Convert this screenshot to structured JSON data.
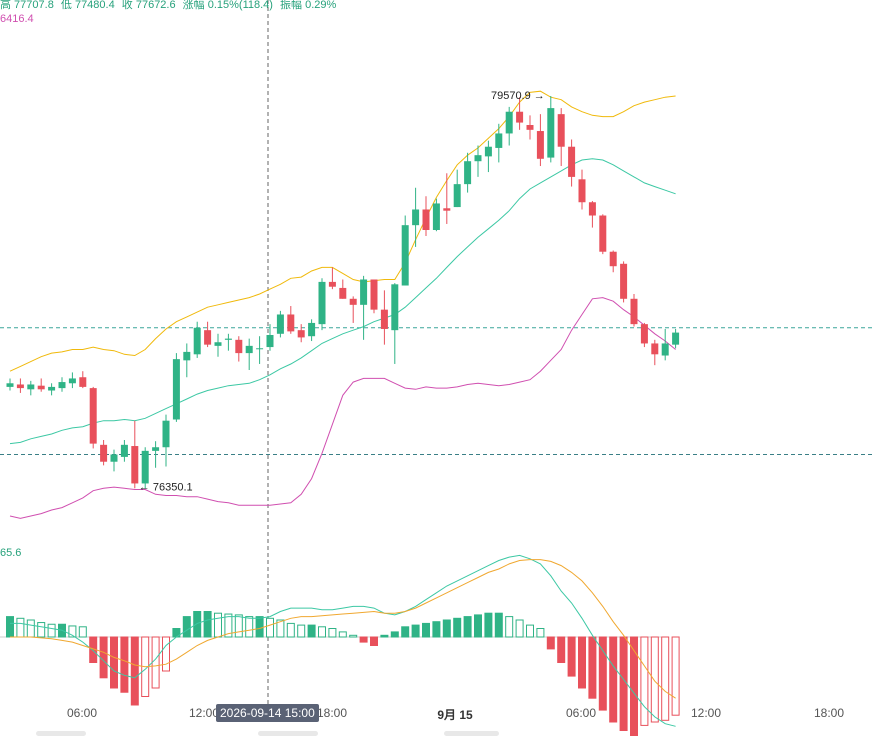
{
  "header": {
    "high": "高 77707.8",
    "low": "低 77480.4",
    "close": "收 77672.6",
    "change": "涨幅 0.15%(118.4)",
    "amplitude": "振幅 0.29%",
    "bb_top": "6416.4",
    "macd_value": "65.6"
  },
  "colors": {
    "up": "#2fb386",
    "down": "#e8505b",
    "ma": "#3cc8a4",
    "upper": "#f0b90b",
    "lower": "#d04fb0",
    "dif": "#3cc8a4",
    "dea": "#f0a830"
  },
  "crosshair_label": "2026-09-14 15:00",
  "annotations": {
    "high_label": "79570.9",
    "low_label": "76350.1"
  },
  "chart_data": {
    "type": "candlestick",
    "x_ticks": [
      "06:00",
      "12:00",
      "18:00",
      "9月 15",
      "06:00",
      "12:00",
      "18:00"
    ],
    "price_range": [
      75850,
      80200
    ],
    "reference_price": 77650,
    "grid_price": 76600,
    "candles": [
      [
        77160,
        77230,
        77130,
        77190
      ],
      [
        77180,
        77230,
        77110,
        77150
      ],
      [
        77140,
        77210,
        77090,
        77180
      ],
      [
        77170,
        77230,
        77120,
        77140
      ],
      [
        77130,
        77190,
        77090,
        77160
      ],
      [
        77150,
        77240,
        77120,
        77200
      ],
      [
        77190,
        77280,
        77150,
        77230
      ],
      [
        77240,
        77290,
        77150,
        77160
      ],
      [
        77150,
        77160,
        76650,
        76690
      ],
      [
        76680,
        76720,
        76510,
        76540
      ],
      [
        76540,
        76640,
        76460,
        76600
      ],
      [
        76580,
        76720,
        76540,
        76680
      ],
      [
        76670,
        76880,
        76320,
        76360
      ],
      [
        76360,
        76660,
        76320,
        76630
      ],
      [
        76630,
        76710,
        76490,
        76660
      ],
      [
        76660,
        76930,
        76500,
        76880
      ],
      [
        76890,
        77440,
        76870,
        77390
      ],
      [
        77380,
        77520,
        77240,
        77450
      ],
      [
        77430,
        77700,
        77400,
        77650
      ],
      [
        77630,
        77700,
        77490,
        77510
      ],
      [
        77500,
        77600,
        77410,
        77530
      ],
      [
        77550,
        77600,
        77460,
        77560
      ],
      [
        77550,
        77580,
        77370,
        77440
      ],
      [
        77440,
        77560,
        77300,
        77500
      ],
      [
        77480,
        77580,
        77350,
        77480
      ],
      [
        77490,
        77680,
        77460,
        77590
      ],
      [
        77600,
        77790,
        77570,
        77760
      ],
      [
        77760,
        77830,
        77600,
        77620
      ],
      [
        77630,
        77680,
        77530,
        77570
      ],
      [
        77580,
        77720,
        77540,
        77690
      ],
      [
        77680,
        78060,
        77630,
        78030
      ],
      [
        78030,
        78150,
        77970,
        77990
      ],
      [
        77980,
        78050,
        77890,
        77890
      ],
      [
        77890,
        77910,
        77690,
        77840
      ],
      [
        77840,
        78080,
        77550,
        78050
      ],
      [
        78050,
        78050,
        77770,
        77800
      ],
      [
        77800,
        77960,
        77510,
        77640
      ],
      [
        77630,
        78020,
        77350,
        78010
      ],
      [
        78000,
        78580,
        78000,
        78500
      ],
      [
        78500,
        78810,
        78320,
        78630
      ],
      [
        78630,
        78740,
        78410,
        78460
      ],
      [
        78460,
        78720,
        78450,
        78680
      ],
      [
        78640,
        78930,
        78510,
        78620
      ],
      [
        78650,
        78960,
        78650,
        78840
      ],
      [
        78840,
        79100,
        78770,
        79030
      ],
      [
        79030,
        79160,
        78900,
        79080
      ],
      [
        79070,
        79200,
        78940,
        79150
      ],
      [
        79140,
        79340,
        79020,
        79260
      ],
      [
        79260,
        79480,
        79160,
        79440
      ],
      [
        79440,
        79560,
        79290,
        79350
      ],
      [
        79330,
        79410,
        79210,
        79290
      ],
      [
        79280,
        79420,
        78990,
        79050
      ],
      [
        79060,
        79570,
        79020,
        79470
      ],
      [
        79420,
        79470,
        78990,
        79150
      ],
      [
        79150,
        79210,
        78820,
        78900
      ],
      [
        78880,
        78960,
        78630,
        78690
      ],
      [
        78690,
        78700,
        78480,
        78580
      ],
      [
        78580,
        78590,
        78260,
        78280
      ],
      [
        78280,
        78290,
        78110,
        78160
      ],
      [
        78180,
        78200,
        77860,
        77890
      ],
      [
        77890,
        77930,
        77660,
        77680
      ],
      [
        77680,
        77690,
        77490,
        77520
      ],
      [
        77520,
        77550,
        77340,
        77430
      ],
      [
        77420,
        77640,
        77380,
        77520
      ],
      [
        77510,
        77640,
        77480,
        77610
      ]
    ],
    "bollinger": {
      "upper": [
        77290,
        77330,
        77370,
        77410,
        77440,
        77450,
        77470,
        77470,
        77490,
        77470,
        77460,
        77430,
        77420,
        77470,
        77560,
        77640,
        77700,
        77740,
        77780,
        77820,
        77840,
        77860,
        77880,
        77900,
        77930,
        77970,
        78010,
        78060,
        78070,
        78120,
        78150,
        78150,
        78100,
        78050,
        78030,
        78040,
        78050,
        78050,
        78190,
        78380,
        78560,
        78730,
        78870,
        79000,
        79080,
        79140,
        79220,
        79300,
        79400,
        79520,
        79600,
        79610,
        79560,
        79540,
        79480,
        79440,
        79410,
        79400,
        79400,
        79440,
        79490,
        79520,
        79540,
        79560,
        79570
      ],
      "middle": [
        76690,
        76700,
        76730,
        76750,
        76770,
        76800,
        76820,
        76830,
        76860,
        76880,
        76880,
        76890,
        76880,
        76900,
        76940,
        76980,
        77020,
        77060,
        77100,
        77130,
        77150,
        77170,
        77180,
        77190,
        77220,
        77260,
        77310,
        77350,
        77400,
        77460,
        77520,
        77560,
        77600,
        77630,
        77660,
        77700,
        77730,
        77760,
        77820,
        77900,
        77980,
        78060,
        78150,
        78240,
        78320,
        78400,
        78470,
        78540,
        78620,
        78720,
        78800,
        78850,
        78900,
        78950,
        79000,
        79040,
        79050,
        79040,
        79000,
        78950,
        78900,
        78850,
        78820,
        78790,
        78760
      ],
      "lower": [
        76090,
        76070,
        76090,
        76110,
        76140,
        76160,
        76200,
        76240,
        76300,
        76320,
        76330,
        76320,
        76310,
        76310,
        76270,
        76260,
        76260,
        76250,
        76250,
        76230,
        76210,
        76200,
        76180,
        76180,
        76180,
        76180,
        76190,
        76200,
        76270,
        76400,
        76610,
        76850,
        77090,
        77200,
        77230,
        77230,
        77230,
        77190,
        77150,
        77140,
        77160,
        77150,
        77150,
        77160,
        77180,
        77190,
        77180,
        77170,
        77180,
        77200,
        77220,
        77290,
        77380,
        77470,
        77630,
        77760,
        77890,
        77900,
        77870,
        77800,
        77740,
        77670,
        77600,
        77540,
        77470
      ]
    },
    "macd": {
      "range": [
        -130,
        100
      ],
      "histogram": [
        24,
        22,
        20,
        17,
        15,
        15,
        13,
        12,
        -30,
        -48,
        -60,
        -65,
        -80,
        -70,
        -60,
        -40,
        10,
        24,
        30,
        30,
        28,
        27,
        26,
        24,
        24,
        22,
        20,
        16,
        14,
        14,
        12,
        10,
        6,
        2,
        -6,
        -10,
        2,
        6,
        12,
        14,
        16,
        18,
        20,
        22,
        24,
        26,
        28,
        28,
        24,
        20,
        14,
        10,
        -14,
        -30,
        -46,
        -60,
        -72,
        -86,
        -100,
        -110,
        -116,
        -104,
        -100,
        -98,
        -92
      ],
      "dif": [
        16,
        16,
        14,
        12,
        10,
        8,
        2,
        -6,
        -16,
        -28,
        -40,
        -45,
        -48,
        -38,
        -26,
        -10,
        0,
        8,
        16,
        20,
        22,
        24,
        24,
        22,
        22,
        24,
        30,
        34,
        34,
        34,
        32,
        32,
        34,
        36,
        36,
        34,
        28,
        26,
        30,
        36,
        44,
        52,
        60,
        66,
        72,
        78,
        84,
        90,
        94,
        96,
        92,
        86,
        72,
        54,
        40,
        22,
        2,
        -16,
        -34,
        -50,
        -66,
        -82,
        -94,
        -102,
        -105
      ],
      "dea": [
        0,
        0,
        0,
        -1,
        -2,
        -4,
        -6,
        -10,
        -14,
        -18,
        -24,
        -28,
        -33,
        -35,
        -34,
        -32,
        -26,
        -18,
        -10,
        -4,
        0,
        4,
        6,
        8,
        10,
        14,
        18,
        22,
        24,
        24,
        25,
        26,
        27,
        28,
        29,
        30,
        28,
        28,
        30,
        34,
        40,
        46,
        52,
        58,
        64,
        70,
        76,
        80,
        86,
        90,
        91,
        91,
        89,
        84,
        76,
        66,
        52,
        36,
        18,
        2,
        -16,
        -34,
        -52,
        -64,
        -72
      ]
    }
  }
}
